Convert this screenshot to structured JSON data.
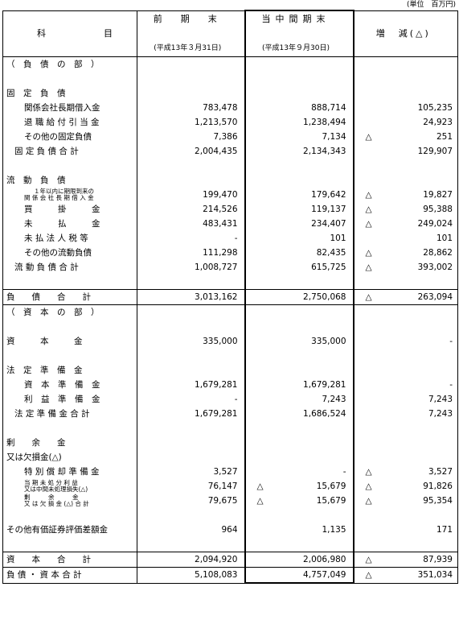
{
  "unit_label": "(単位　百万円)",
  "header": {
    "subject": [
      "科",
      "目"
    ],
    "prev_title": "前　期　末",
    "prev_date": "(平成13年３月31日)",
    "cur_title": "当中間期末",
    "cur_date": "(平成13年９月30日)",
    "change_title": "増　減(△)"
  },
  "rows": [
    {
      "label": "（　負　債　の　部　）",
      "prev": "",
      "cur": "",
      "chg": "",
      "chg_neg": false,
      "cur_neg": false
    },
    {
      "label": "",
      "prev": "",
      "cur": "",
      "chg": ""
    },
    {
      "label": "固　定　負　債",
      "prev": "",
      "cur": "",
      "chg": ""
    },
    {
      "label": "関係会社長期借入金",
      "prev": "783,478",
      "cur": "888,714",
      "chg": "105,235"
    },
    {
      "label": "退 職 給 付 引 当 金",
      "prev": "1,213,570",
      "cur": "1,238,494",
      "chg": "24,923"
    },
    {
      "label": "その他の固定負債",
      "prev": "7,386",
      "cur": "7,134",
      "chg": "251",
      "chg_neg": true
    },
    {
      "label": "固 定 負 債 合 計",
      "prev": "2,004,435",
      "cur": "2,134,343",
      "chg": "129,907"
    },
    {
      "label": "",
      "prev": "",
      "cur": "",
      "chg": ""
    },
    {
      "label": "流　動　負　債",
      "prev": "",
      "cur": "",
      "chg": ""
    },
    {
      "label": "１年以内に期限到来の",
      "label2": "関 係 会 社 長 期 借 入 金",
      "prev": "199,470",
      "cur": "179,642",
      "chg": "19,827",
      "chg_neg": true
    },
    {
      "label": "買　　　掛　　　金",
      "prev": "214,526",
      "cur": "119,137",
      "chg": "95,388",
      "chg_neg": true
    },
    {
      "label": "未　　　払　　　金",
      "prev": "483,431",
      "cur": "234,407",
      "chg": "249,024",
      "chg_neg": true
    },
    {
      "label": "未 払 法 人 税 等",
      "prev": "-",
      "cur": "101",
      "chg": "101"
    },
    {
      "label": "その他の流動負債",
      "prev": "111,298",
      "cur": "82,435",
      "chg": "28,862",
      "chg_neg": true
    },
    {
      "label": "流 動 負 債 合 計",
      "prev": "1,008,727",
      "cur": "615,725",
      "chg": "393,002",
      "chg_neg": true
    },
    {
      "label": "",
      "prev": "",
      "cur": "",
      "chg": ""
    },
    {
      "label": "負　　債　　合　　計",
      "prev": "3,013,162",
      "cur": "2,750,068",
      "chg": "263,094",
      "chg_neg": true,
      "sep": true
    },
    {
      "label": "（　資　本　の　部　）",
      "prev": "",
      "cur": "",
      "chg": "",
      "sep": true
    },
    {
      "label": "",
      "prev": "",
      "cur": "",
      "chg": ""
    },
    {
      "label": "資　　　本　　　金",
      "prev": "335,000",
      "cur": "335,000",
      "chg": "-"
    },
    {
      "label": "",
      "prev": "",
      "cur": "",
      "chg": ""
    },
    {
      "label": "法　定　準　備　金",
      "prev": "",
      "cur": "",
      "chg": ""
    },
    {
      "label": "資　本　準　備　金",
      "prev": "1,679,281",
      "cur": "1,679,281",
      "chg": "-"
    },
    {
      "label": "利　益　準　備　金",
      "prev": "-",
      "cur": "7,243",
      "chg": "7,243"
    },
    {
      "label": "法 定 準 備 金 合 計",
      "prev": "1,679,281",
      "cur": "1,686,524",
      "chg": "7,243"
    },
    {
      "label": "",
      "prev": "",
      "cur": "",
      "chg": ""
    },
    {
      "label": "剰　　余　　金",
      "prev": "",
      "cur": "",
      "chg": ""
    },
    {
      "label": "又は欠損金(△)",
      "prev": "",
      "cur": "",
      "chg": ""
    },
    {
      "label": "特 別 償 却 準 備 金",
      "prev": "3,527",
      "cur": "-",
      "chg": "3,527",
      "chg_neg": true
    },
    {
      "label": "当 期 未 処 分 利 益",
      "label2": "又は中間未処理損失(△)",
      "prev": "76,147",
      "cur": "15,679",
      "cur_neg": true,
      "chg": "91,826",
      "chg_neg": true
    },
    {
      "label": "剰　　　余　　　金",
      "label2": "又 は 欠 損 金 (△) 合 計",
      "prev": "79,675",
      "cur": "15,679",
      "cur_neg": true,
      "chg": "95,354",
      "chg_neg": true
    },
    {
      "label": "",
      "prev": "",
      "cur": "",
      "chg": ""
    },
    {
      "label": "その他有価証券評価差額金",
      "prev": "964",
      "cur": "1,135",
      "chg": "171"
    },
    {
      "label": "",
      "prev": "",
      "cur": "",
      "chg": ""
    },
    {
      "label": "資　　本　　合　　計",
      "prev": "2,094,920",
      "cur": "2,006,980",
      "chg": "87,939",
      "chg_neg": true,
      "sep": true
    },
    {
      "label": "負 債 ・ 資 本 合 計",
      "prev": "5,108,083",
      "cur": "4,757,049",
      "chg": "351,034",
      "chg_neg": true,
      "sep": true
    }
  ],
  "neg_mark": "△"
}
